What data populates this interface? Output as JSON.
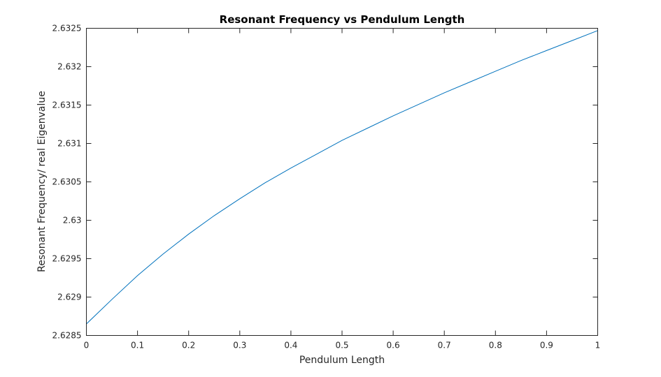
{
  "chart_data": {
    "type": "line",
    "title": "Resonant Frequency vs Pendulum Length",
    "xlabel": "Pendulum Length",
    "ylabel": "Resonant Frequency/ real Eigenvalue",
    "xlim": [
      0,
      1
    ],
    "ylim": [
      2.6285,
      2.6325
    ],
    "xticks": [
      0,
      0.1,
      0.2,
      0.3,
      0.4,
      0.5,
      0.6,
      0.7,
      0.8,
      0.9,
      1
    ],
    "xtick_labels": [
      "0",
      "0.1",
      "0.2",
      "0.3",
      "0.4",
      "0.5",
      "0.6",
      "0.7",
      "0.8",
      "0.9",
      "1"
    ],
    "yticks": [
      2.6285,
      2.629,
      2.6295,
      2.63,
      2.6305,
      2.631,
      2.6315,
      2.632,
      2.6325
    ],
    "ytick_labels": [
      "2.6285",
      "2.629",
      "2.6295",
      "2.63",
      "2.6305",
      "2.631",
      "2.6315",
      "2.632",
      "2.6325"
    ],
    "grid": false,
    "legend": "none",
    "series": [
      {
        "color": "#0072BD",
        "x": [
          0,
          0.05,
          0.1,
          0.15,
          0.2,
          0.25,
          0.3,
          0.35,
          0.4,
          0.45,
          0.5,
          0.55,
          0.6,
          0.65,
          0.7,
          0.75,
          0.8,
          0.85,
          0.9,
          0.95,
          1
        ],
        "y": [
          2.62865,
          2.62897,
          2.62928,
          2.62956,
          2.62982,
          2.63006,
          2.63028,
          2.63049,
          2.63068,
          2.63086,
          2.63104,
          2.6312,
          2.63136,
          2.63151,
          2.63166,
          2.6318,
          2.63194,
          2.63208,
          2.63221,
          2.63234,
          2.63247
        ]
      }
    ]
  }
}
